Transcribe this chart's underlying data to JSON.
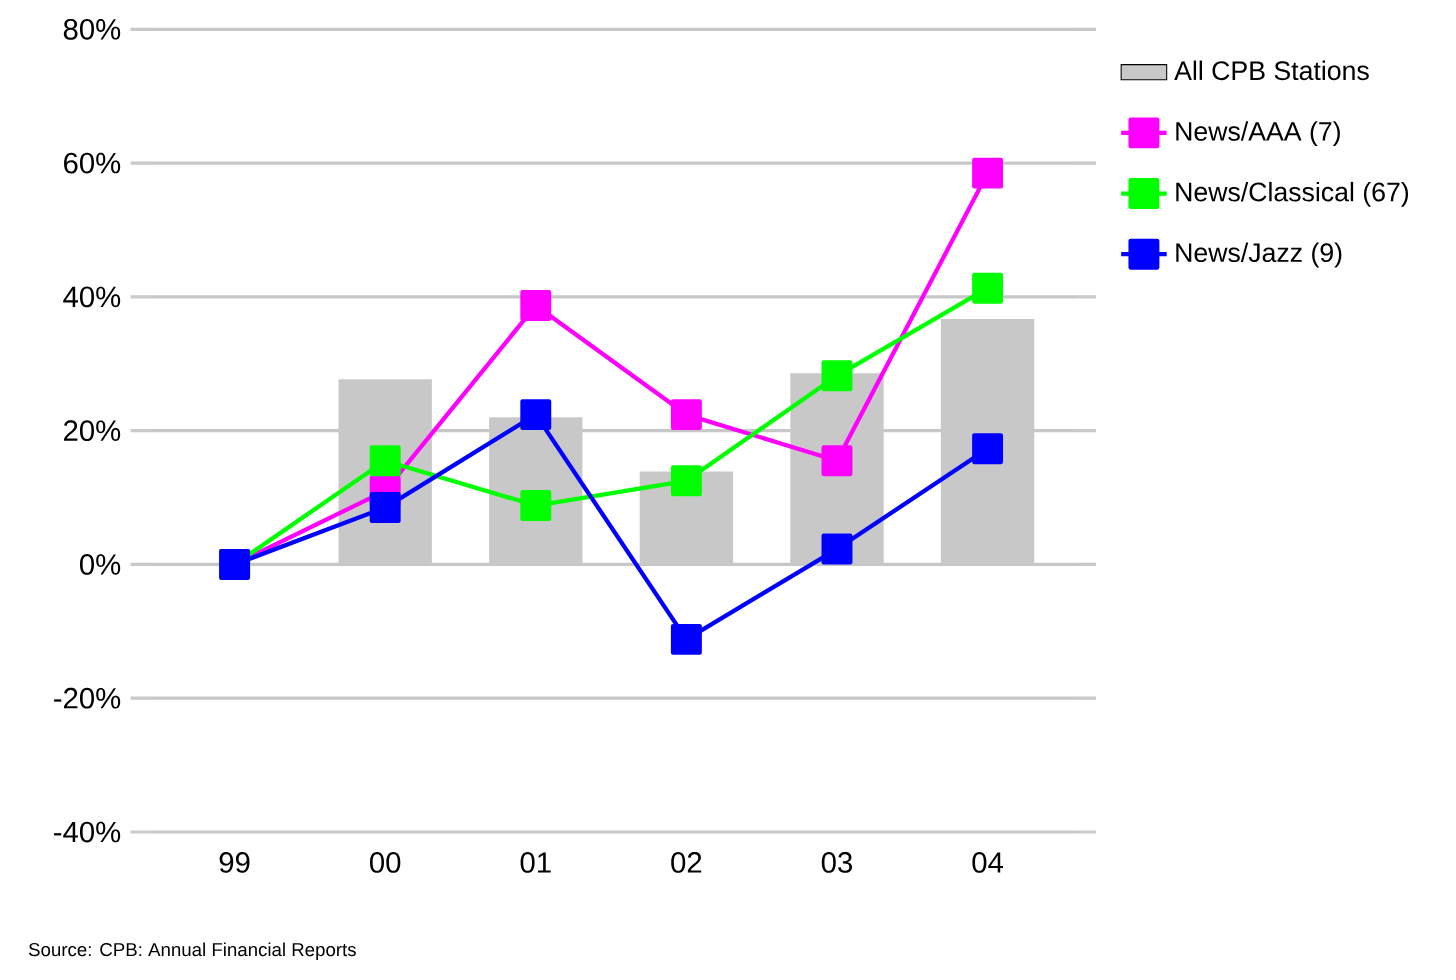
{
  "chart_data": {
    "type": "bar",
    "categories": [
      "99",
      "00",
      "01",
      "02",
      "03",
      "04"
    ],
    "series": [
      {
        "name": "All CPB Stations",
        "color": "#c8c8c8",
        "values": [
          0,
          27.7,
          22,
          13.9,
          28.6,
          36.7
        ]
      },
      {
        "name": "News/AAA (7)",
        "type": "line",
        "color": "#ff00ff",
        "values": [
          0,
          11,
          38.7,
          22.4,
          15.5,
          58.5
        ]
      },
      {
        "name": "News/Classical (67)",
        "type": "line",
        "color": "#00ff00",
        "values": [
          0,
          15.5,
          8.8,
          12.5,
          28.2,
          41.3
        ]
      },
      {
        "name": "News/Jazz (9)",
        "type": "line",
        "color": "#0000ff",
        "values": [
          0,
          8.5,
          22.4,
          -11.2,
          2.3,
          17.3
        ]
      }
    ],
    "ylim": [
      -40,
      80
    ],
    "yticks": [
      {
        "value": -40,
        "label": "-40%"
      },
      {
        "value": -20,
        "label": "-20%"
      },
      {
        "value": 0,
        "label": "0%"
      },
      {
        "value": 20,
        "label": "20%"
      },
      {
        "value": 40,
        "label": "40%"
      },
      {
        "value": 60,
        "label": "60%"
      },
      {
        "value": 80,
        "label": "80%"
      }
    ],
    "grid": "y",
    "legend": "right",
    "marker": "square",
    "annotations": [
      "Source: CPB: Annual Financial Reports"
    ]
  }
}
